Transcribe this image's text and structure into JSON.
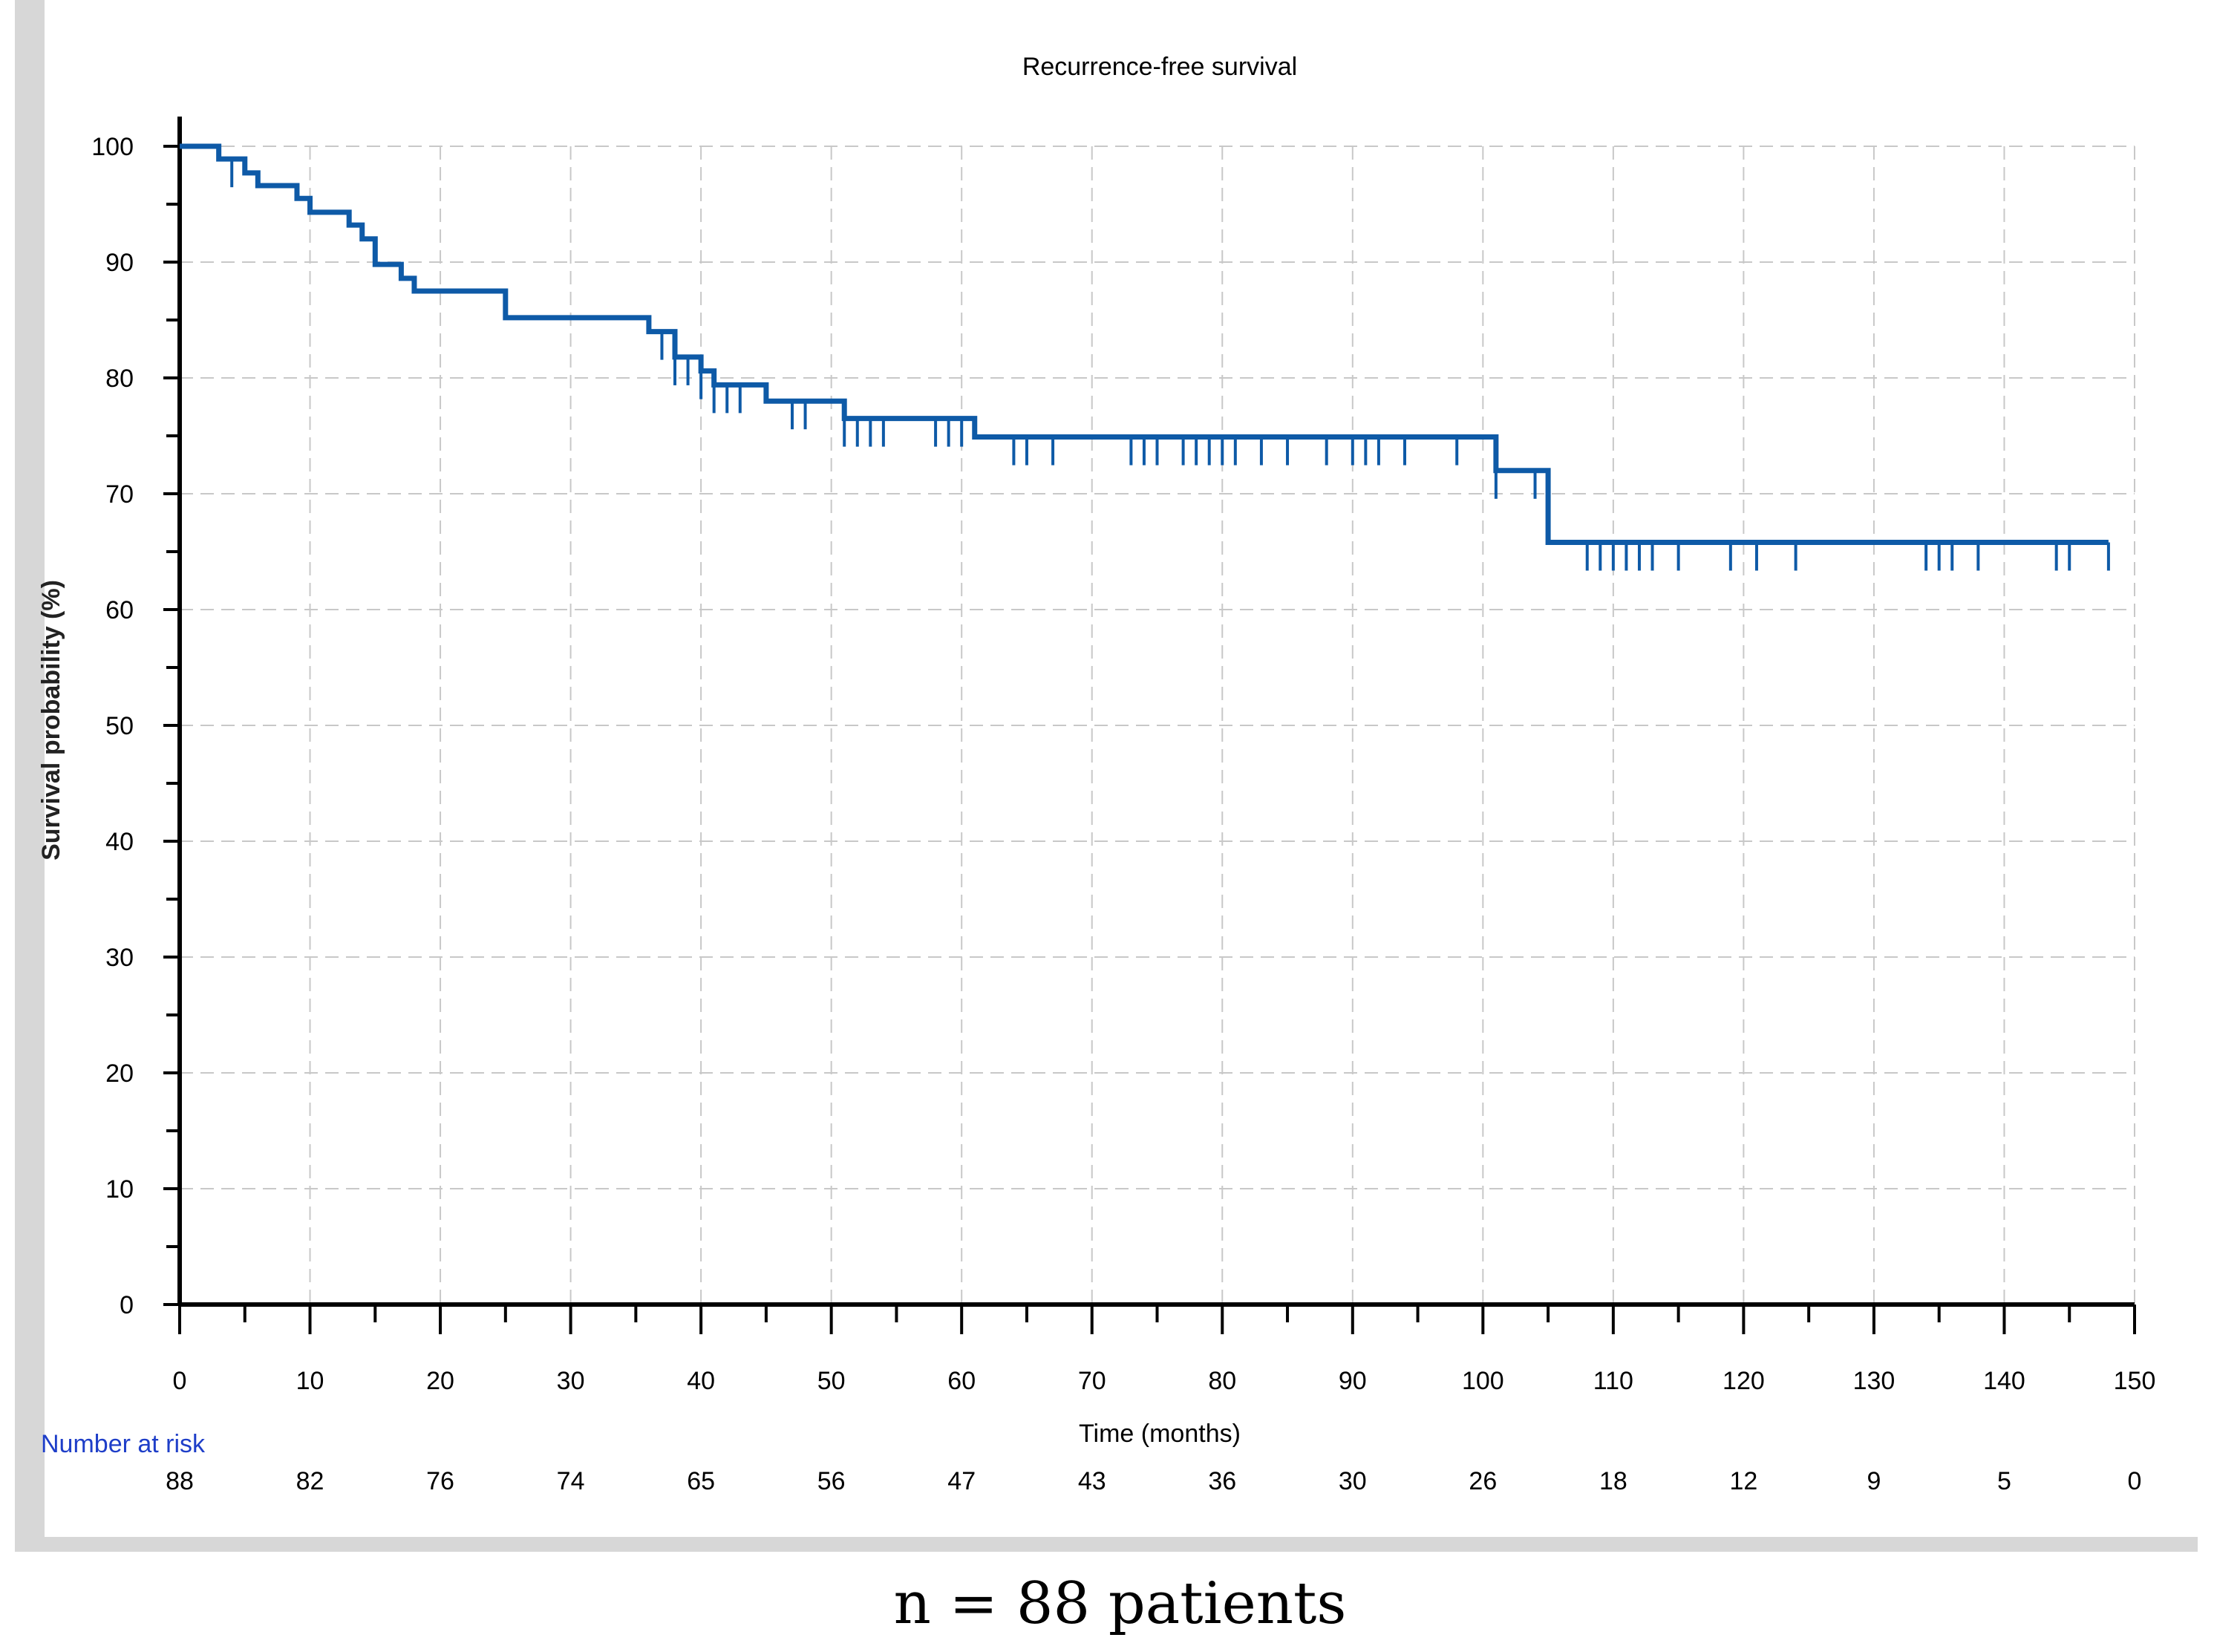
{
  "caption": "n = 88 patients",
  "colors": {
    "curve": "#0e5aa7",
    "axis": "#000000",
    "grid": "#c8c8c8",
    "risk_label": "#1e3ec8",
    "frame": "#d7d7d7"
  },
  "chart_data": {
    "type": "line",
    "subtype": "kaplan-meier",
    "title": "Recurrence-free survival",
    "xlabel": "Time (months)",
    "ylabel": "Survival probability (%)",
    "xlim": [
      0,
      150
    ],
    "ylim": [
      0,
      100
    ],
    "x_ticks": [
      "0",
      "10",
      "20",
      "30",
      "40",
      "50",
      "60",
      "70",
      "80",
      "90",
      "100",
      "110",
      "120",
      "130",
      "140",
      "150"
    ],
    "y_ticks": [
      "0",
      "10",
      "20",
      "30",
      "40",
      "50",
      "60",
      "70",
      "80",
      "90",
      "100"
    ],
    "grid": true,
    "risk_table": {
      "label": "Number at risk",
      "times": [
        0,
        10,
        20,
        30,
        40,
        50,
        60,
        70,
        80,
        90,
        100,
        110,
        120,
        130,
        140,
        150
      ],
      "values": [
        "88",
        "82",
        "76",
        "74",
        "65",
        "56",
        "47",
        "43",
        "36",
        "30",
        "26",
        "18",
        "12",
        "9",
        "5",
        "0"
      ]
    },
    "series": [
      {
        "name": "Recurrence-free survival",
        "steps": [
          [
            0,
            100
          ],
          [
            3,
            98.9
          ],
          [
            5,
            97.7
          ],
          [
            6,
            96.6
          ],
          [
            9,
            95.5
          ],
          [
            10,
            94.3
          ],
          [
            13,
            93.2
          ],
          [
            14,
            92.0
          ],
          [
            15,
            89.8
          ],
          [
            17,
            88.6
          ],
          [
            18,
            87.5
          ],
          [
            25,
            85.2
          ],
          [
            36,
            84.0
          ],
          [
            38,
            81.8
          ],
          [
            40,
            80.6
          ],
          [
            41,
            79.4
          ],
          [
            45,
            78.0
          ],
          [
            51,
            76.5
          ],
          [
            61,
            74.9
          ],
          [
            101,
            72.0
          ],
          [
            105,
            65.8
          ],
          [
            148,
            65.8
          ]
        ],
        "censored": [
          [
            4,
            98.9
          ],
          [
            37,
            84.0
          ],
          [
            38,
            81.8
          ],
          [
            39,
            81.8
          ],
          [
            40,
            80.6
          ],
          [
            41,
            79.4
          ],
          [
            42,
            79.4
          ],
          [
            43,
            79.4
          ],
          [
            47,
            78.0
          ],
          [
            48,
            78.0
          ],
          [
            51,
            76.5
          ],
          [
            52,
            76.5
          ],
          [
            53,
            76.5
          ],
          [
            54,
            76.5
          ],
          [
            58,
            76.5
          ],
          [
            59,
            76.5
          ],
          [
            60,
            76.5
          ],
          [
            64,
            74.9
          ],
          [
            65,
            74.9
          ],
          [
            67,
            74.9
          ],
          [
            73,
            74.9
          ],
          [
            74,
            74.9
          ],
          [
            75,
            74.9
          ],
          [
            77,
            74.9
          ],
          [
            78,
            74.9
          ],
          [
            79,
            74.9
          ],
          [
            80,
            74.9
          ],
          [
            81,
            74.9
          ],
          [
            83,
            74.9
          ],
          [
            85,
            74.9
          ],
          [
            88,
            74.9
          ],
          [
            90,
            74.9
          ],
          [
            91,
            74.9
          ],
          [
            92,
            74.9
          ],
          [
            94,
            74.9
          ],
          [
            98,
            74.9
          ],
          [
            101,
            72.0
          ],
          [
            104,
            72.0
          ],
          [
            108,
            65.8
          ],
          [
            109,
            65.8
          ],
          [
            110,
            65.8
          ],
          [
            111,
            65.8
          ],
          [
            112,
            65.8
          ],
          [
            113,
            65.8
          ],
          [
            115,
            65.8
          ],
          [
            119,
            65.8
          ],
          [
            121,
            65.8
          ],
          [
            124,
            65.8
          ],
          [
            134,
            65.8
          ],
          [
            135,
            65.8
          ],
          [
            136,
            65.8
          ],
          [
            138,
            65.8
          ],
          [
            144,
            65.8
          ],
          [
            145,
            65.8
          ],
          [
            148,
            65.8
          ]
        ]
      }
    ]
  }
}
